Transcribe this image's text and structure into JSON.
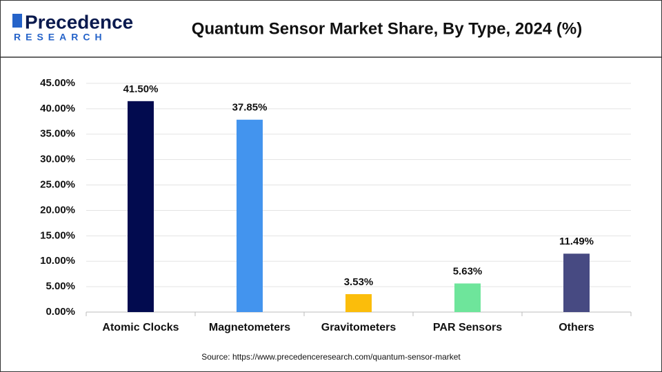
{
  "logo": {
    "name": "Precedence",
    "sub": "RESEARCH"
  },
  "chart_data": {
    "type": "bar",
    "title": "Quantum Sensor Market Share, By Type, 2024 (%)",
    "categories": [
      "Atomic Clocks",
      "Magnetometers",
      "Gravitometers",
      "PAR Sensors",
      "Others"
    ],
    "values": [
      41.5,
      37.85,
      3.53,
      5.63,
      11.49
    ],
    "value_labels": [
      "41.50%",
      "37.85%",
      "3.53%",
      "5.63%",
      "11.49%"
    ],
    "colors": [
      "#020b4f",
      "#4394ee",
      "#fbbd0b",
      "#6ee59b",
      "#474a82"
    ],
    "ylim": [
      0,
      45
    ],
    "yticks": [
      {
        "value": 0,
        "label": "0.00%"
      },
      {
        "value": 5,
        "label": "5.00%"
      },
      {
        "value": 10,
        "label": "10.00%"
      },
      {
        "value": 15,
        "label": "15.00%"
      },
      {
        "value": 20,
        "label": "20.00%"
      },
      {
        "value": 25,
        "label": "25.00%"
      },
      {
        "value": 30,
        "label": "30.00%"
      },
      {
        "value": 35,
        "label": "35.00%"
      },
      {
        "value": 40,
        "label": "40.00%"
      },
      {
        "value": 45,
        "label": "45.00%"
      }
    ],
    "grid": true,
    "source": "Source: https://www.precedenceresearch.com/quantum-sensor-market"
  }
}
